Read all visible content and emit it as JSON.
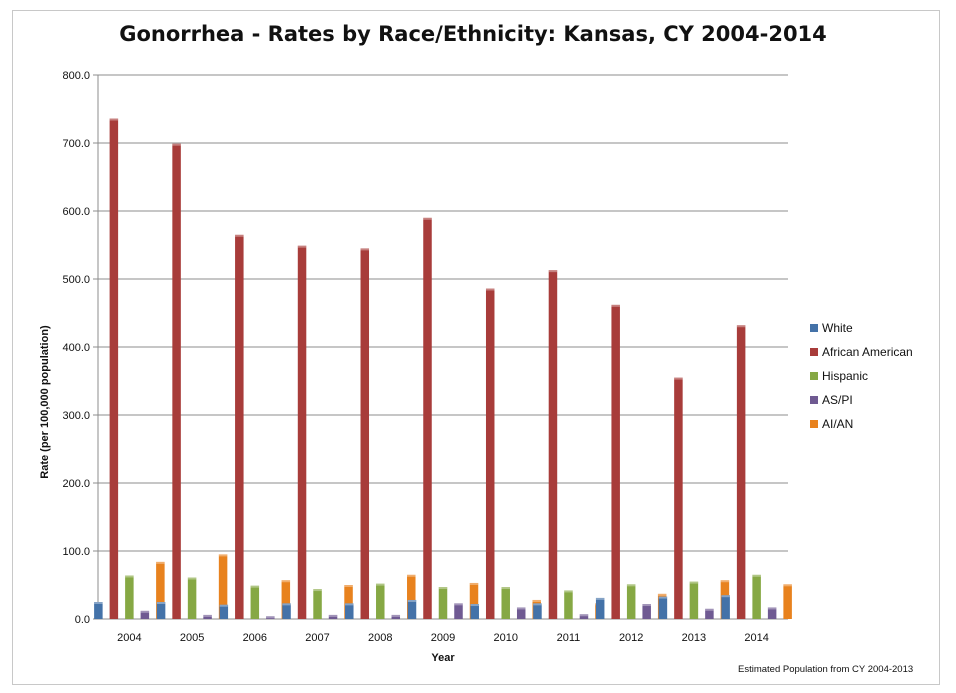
{
  "chart_data": {
    "type": "bar",
    "title": "Gonorrhea - Rates by Race/Ethnicity: Kansas, CY 2004-2014",
    "xlabel": "Year",
    "ylabel": "Rate (per 100,000 population)",
    "ylim": [
      0,
      800
    ],
    "yticks": [
      "0.0",
      "100.0",
      "200.0",
      "300.0",
      "400.0",
      "500.0",
      "600.0",
      "700.0",
      "800.0"
    ],
    "grid": true,
    "legend_position": "right",
    "categories": [
      "2004",
      "2005",
      "2006",
      "2007",
      "2008",
      "2009",
      "2010",
      "2011",
      "2012",
      "2013",
      "2014"
    ],
    "series": [
      {
        "name": "White",
        "color": "#4472a8",
        "values": [
          25,
          25,
          21,
          23,
          23,
          28,
          22,
          23,
          31,
          33,
          35
        ]
      },
      {
        "name": "African American",
        "color": "#a83c3a",
        "values": [
          736,
          699,
          565,
          549,
          545,
          590,
          486,
          513,
          462,
          355,
          432
        ]
      },
      {
        "name": "Hispanic",
        "color": "#86a844",
        "values": [
          64,
          61,
          49,
          44,
          52,
          47,
          47,
          42,
          51,
          55,
          65
        ]
      },
      {
        "name": "AS/PI",
        "color": "#6f5a92",
        "values": [
          12,
          6,
          4,
          6,
          6,
          23,
          17,
          7,
          22,
          15,
          17
        ]
      },
      {
        "name": "AI/AN",
        "color": "#e8821e",
        "values": [
          84,
          95,
          57,
          50,
          65,
          53,
          28,
          23,
          37,
          57,
          51
        ]
      }
    ],
    "annotation": "Estimated Population from CY 2004-2013"
  }
}
